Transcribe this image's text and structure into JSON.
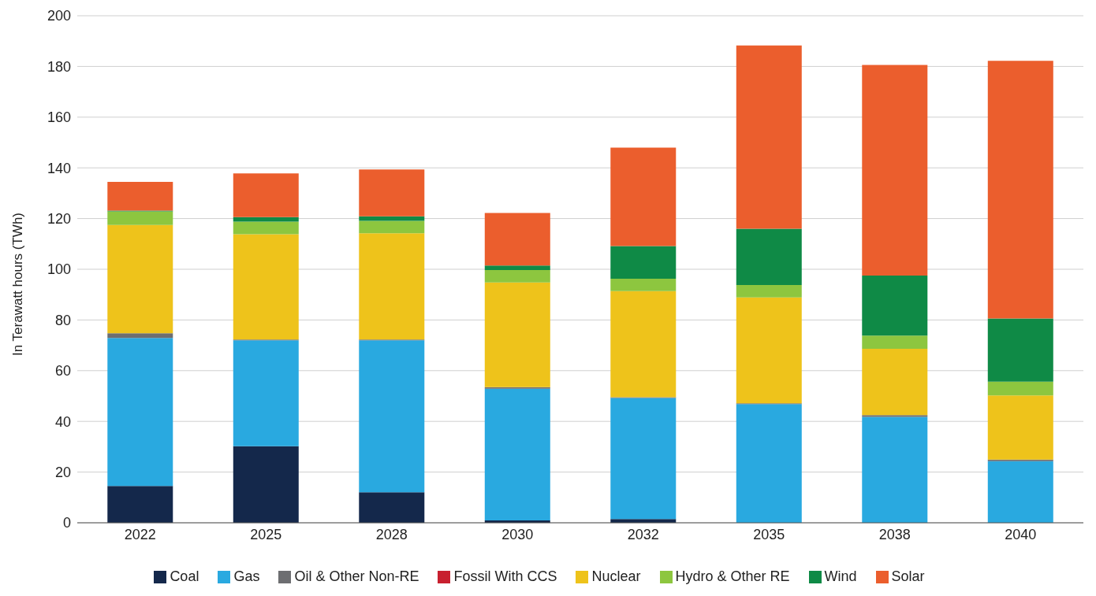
{
  "chart_data": {
    "type": "bar",
    "stacked": true,
    "ylabel": "In Terawatt hours (TWh)",
    "categories": [
      "2022",
      "2025",
      "2028",
      "2030",
      "2032",
      "2035",
      "2038",
      "2040"
    ],
    "series": [
      {
        "name": "Coal",
        "color": "#14284b",
        "values": [
          14.5,
          30.2,
          12,
          0.9,
          1.5,
          0,
          0,
          0
        ]
      },
      {
        "name": "Gas",
        "color": "#29a9e0",
        "values": [
          58.4,
          41.8,
          60,
          52,
          47.7,
          46.8,
          41.8,
          24.3
        ]
      },
      {
        "name": "Oil & Other Non-RE",
        "color": "#6d6e71",
        "values": [
          1.9,
          0.3,
          0.3,
          0.6,
          0.3,
          0.3,
          0.7,
          0.6
        ]
      },
      {
        "name": "Fossil With CCS",
        "color": "#c8202f",
        "values": [
          0,
          0,
          0,
          0,
          0,
          0,
          0,
          0
        ]
      },
      {
        "name": "Nuclear",
        "color": "#eec31b",
        "values": [
          42.7,
          41.5,
          41.9,
          41.3,
          41.9,
          41.8,
          26.1,
          25.3
        ]
      },
      {
        "name": "Hydro & Other RE",
        "color": "#8dc63f",
        "values": [
          5.3,
          5,
          4.9,
          4.9,
          4.9,
          4.9,
          5.2,
          5.5
        ]
      },
      {
        "name": "Wind",
        "color": "#0f8a46",
        "values": [
          0.3,
          1.8,
          1.8,
          1.8,
          12.9,
          22.2,
          23.7,
          24.9
        ]
      },
      {
        "name": "Solar",
        "color": "#eb5e2d",
        "values": [
          11.4,
          17.2,
          18.5,
          20.7,
          38.8,
          72.3,
          83.1,
          101.6
        ]
      }
    ],
    "ylim": [
      0,
      200
    ],
    "yticks": [
      0,
      20,
      40,
      60,
      80,
      100,
      120,
      140,
      160,
      180,
      200
    ],
    "grid": "y",
    "legend": "bottom"
  }
}
